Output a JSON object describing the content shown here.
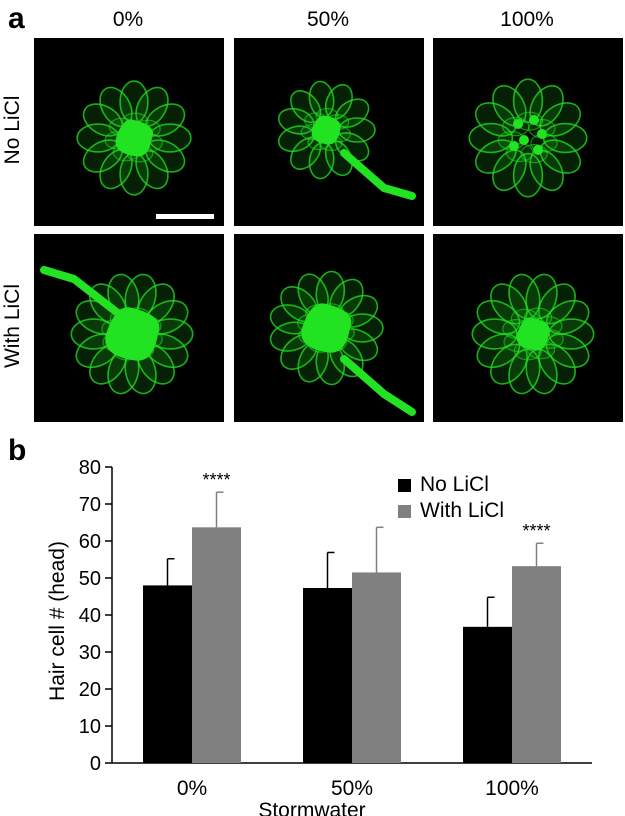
{
  "panel_a": {
    "letter": "a",
    "columns": [
      "0%",
      "50%",
      "100%"
    ],
    "rows": [
      "No LiCl",
      "With LiCl"
    ]
  },
  "panel_b": {
    "letter": "b"
  },
  "colors": {
    "no_licl": "#000000",
    "with_licl": "#808080",
    "fluorescence": "#22e322"
  },
  "chart_data": {
    "type": "bar",
    "categories": [
      "0%",
      "50%",
      "100%"
    ],
    "series": [
      {
        "name": "No LiCl",
        "values": [
          48,
          47.3,
          36.8
        ],
        "errors": [
          7.2,
          9.6,
          8
        ],
        "color": "#000000"
      },
      {
        "name": "With LiCl",
        "values": [
          63.7,
          51.5,
          53.2
        ],
        "errors": [
          9.5,
          12.2,
          6.2
        ],
        "color": "#808080"
      }
    ],
    "significance": [
      "****",
      "",
      "****"
    ],
    "xlabel": "Stormwater",
    "ylabel": "Hair cell # (head)",
    "ylim": [
      0,
      80
    ],
    "yticks": [
      0,
      10,
      20,
      30,
      40,
      50,
      60,
      70,
      80
    ],
    "legend": "top-right",
    "grid": false
  }
}
